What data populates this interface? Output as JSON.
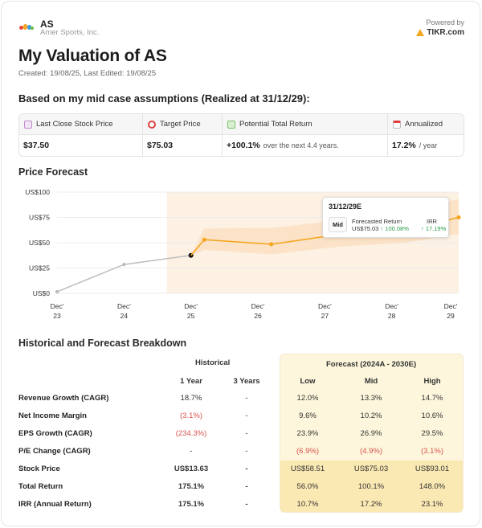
{
  "header": {
    "ticker": "AS",
    "company": "Amer Sports, Inc.",
    "powered_by": "Powered by",
    "brand": "TIKR.com"
  },
  "title": "My Valuation of AS",
  "meta": "Created: 19/08/25, Last Edited: 19/08/25",
  "assumption": "Based on my mid case assumptions (Realized at 31/12/29):",
  "summary": {
    "last_close_label": "Last Close Stock Price",
    "last_close_value": "$37.50",
    "target_label": "Target Price",
    "target_value": "$75.03",
    "return_label": "Potential Total Return",
    "return_value": "+100.1%",
    "return_sub": "over the next 4.4 years.",
    "annual_label": "Annualized",
    "annual_value": "17.2%",
    "annual_sub": "/ year"
  },
  "price_forecast_title": "Price Forecast",
  "tooltip": {
    "date": "31/12/29E",
    "case": "Mid",
    "forecast_label": "Forecasted Return",
    "forecast_price": "US$75.03",
    "forecast_pct": "↑ 100.08%",
    "irr_label": "IRR",
    "irr_value": "↑ 17.19%"
  },
  "chart_data": {
    "type": "line",
    "y_ticks": [
      "US$100",
      "US$75",
      "US$50",
      "US$25",
      "US$0"
    ],
    "ylim": [
      0,
      100
    ],
    "x_ticks": [
      {
        "top": "Dec'",
        "bottom": "23"
      },
      {
        "top": "Dec'",
        "bottom": "24"
      },
      {
        "top": "Dec'",
        "bottom": "25"
      },
      {
        "top": "Dec'",
        "bottom": "26"
      },
      {
        "top": "Dec'",
        "bottom": "27"
      },
      {
        "top": "Dec'",
        "bottom": "28"
      },
      {
        "top": "Dec'",
        "bottom": "29"
      }
    ],
    "historical": {
      "x": [
        2023.0,
        2024.0,
        2025.0
      ],
      "y": [
        1.5,
        28.5,
        37.5
      ]
    },
    "forecast_mid": {
      "x": [
        2025.0,
        2025.2,
        2026.2,
        2027.2,
        2028.2,
        2029.0
      ],
      "y": [
        37.5,
        53.0,
        48.5,
        58.0,
        62.0,
        75.03
      ]
    },
    "forecast_high": [
      37.5,
      64.0,
      64.5,
      72.0,
      82.0,
      93.01
    ],
    "forecast_low": [
      37.5,
      43.0,
      38.5,
      46.0,
      50.0,
      58.51
    ],
    "colors": {
      "historical": "#bdbdbd",
      "forecast": "#f5a623",
      "band": "#fbe0c2",
      "shade": "#fdf1e3"
    }
  },
  "breakdown": {
    "title": "Historical and Forecast Breakdown",
    "historical_head": "Historical",
    "forecast_head": "Forecast (2024A - 2030E)",
    "columns": [
      "1 Year",
      "3 Years",
      "Low",
      "Mid",
      "High"
    ],
    "rows": [
      {
        "label": "Revenue Growth (CAGR)",
        "y1": "18.7%",
        "y3": "-",
        "low": "12.0%",
        "mid": "13.3%",
        "high": "14.7%"
      },
      {
        "label": "Net Income Margin",
        "y1": "(3.1%)",
        "y3": "-",
        "low": "9.6%",
        "mid": "10.2%",
        "high": "10.6%"
      },
      {
        "label": "EPS Growth (CAGR)",
        "y1": "(234.3%)",
        "y3": "-",
        "low": "23.9%",
        "mid": "26.9%",
        "high": "29.5%"
      },
      {
        "label": "P/E Change (CAGR)",
        "y1": "-",
        "y3": "-",
        "low": "(6.9%)",
        "mid": "(4.9%)",
        "high": "(3.1%)"
      },
      {
        "label": "Stock Price",
        "y1": "US$13.63",
        "y3": "-",
        "low": "US$58.51",
        "mid": "US$75.03",
        "high": "US$93.01"
      },
      {
        "label": "Total Return",
        "y1": "175.1%",
        "y3": "-",
        "low": "56.0%",
        "mid": "100.1%",
        "high": "148.0%"
      },
      {
        "label": "IRR (Annual Return)",
        "y1": "175.1%",
        "y3": "-",
        "low": "10.7%",
        "mid": "17.2%",
        "high": "23.1%"
      }
    ]
  }
}
